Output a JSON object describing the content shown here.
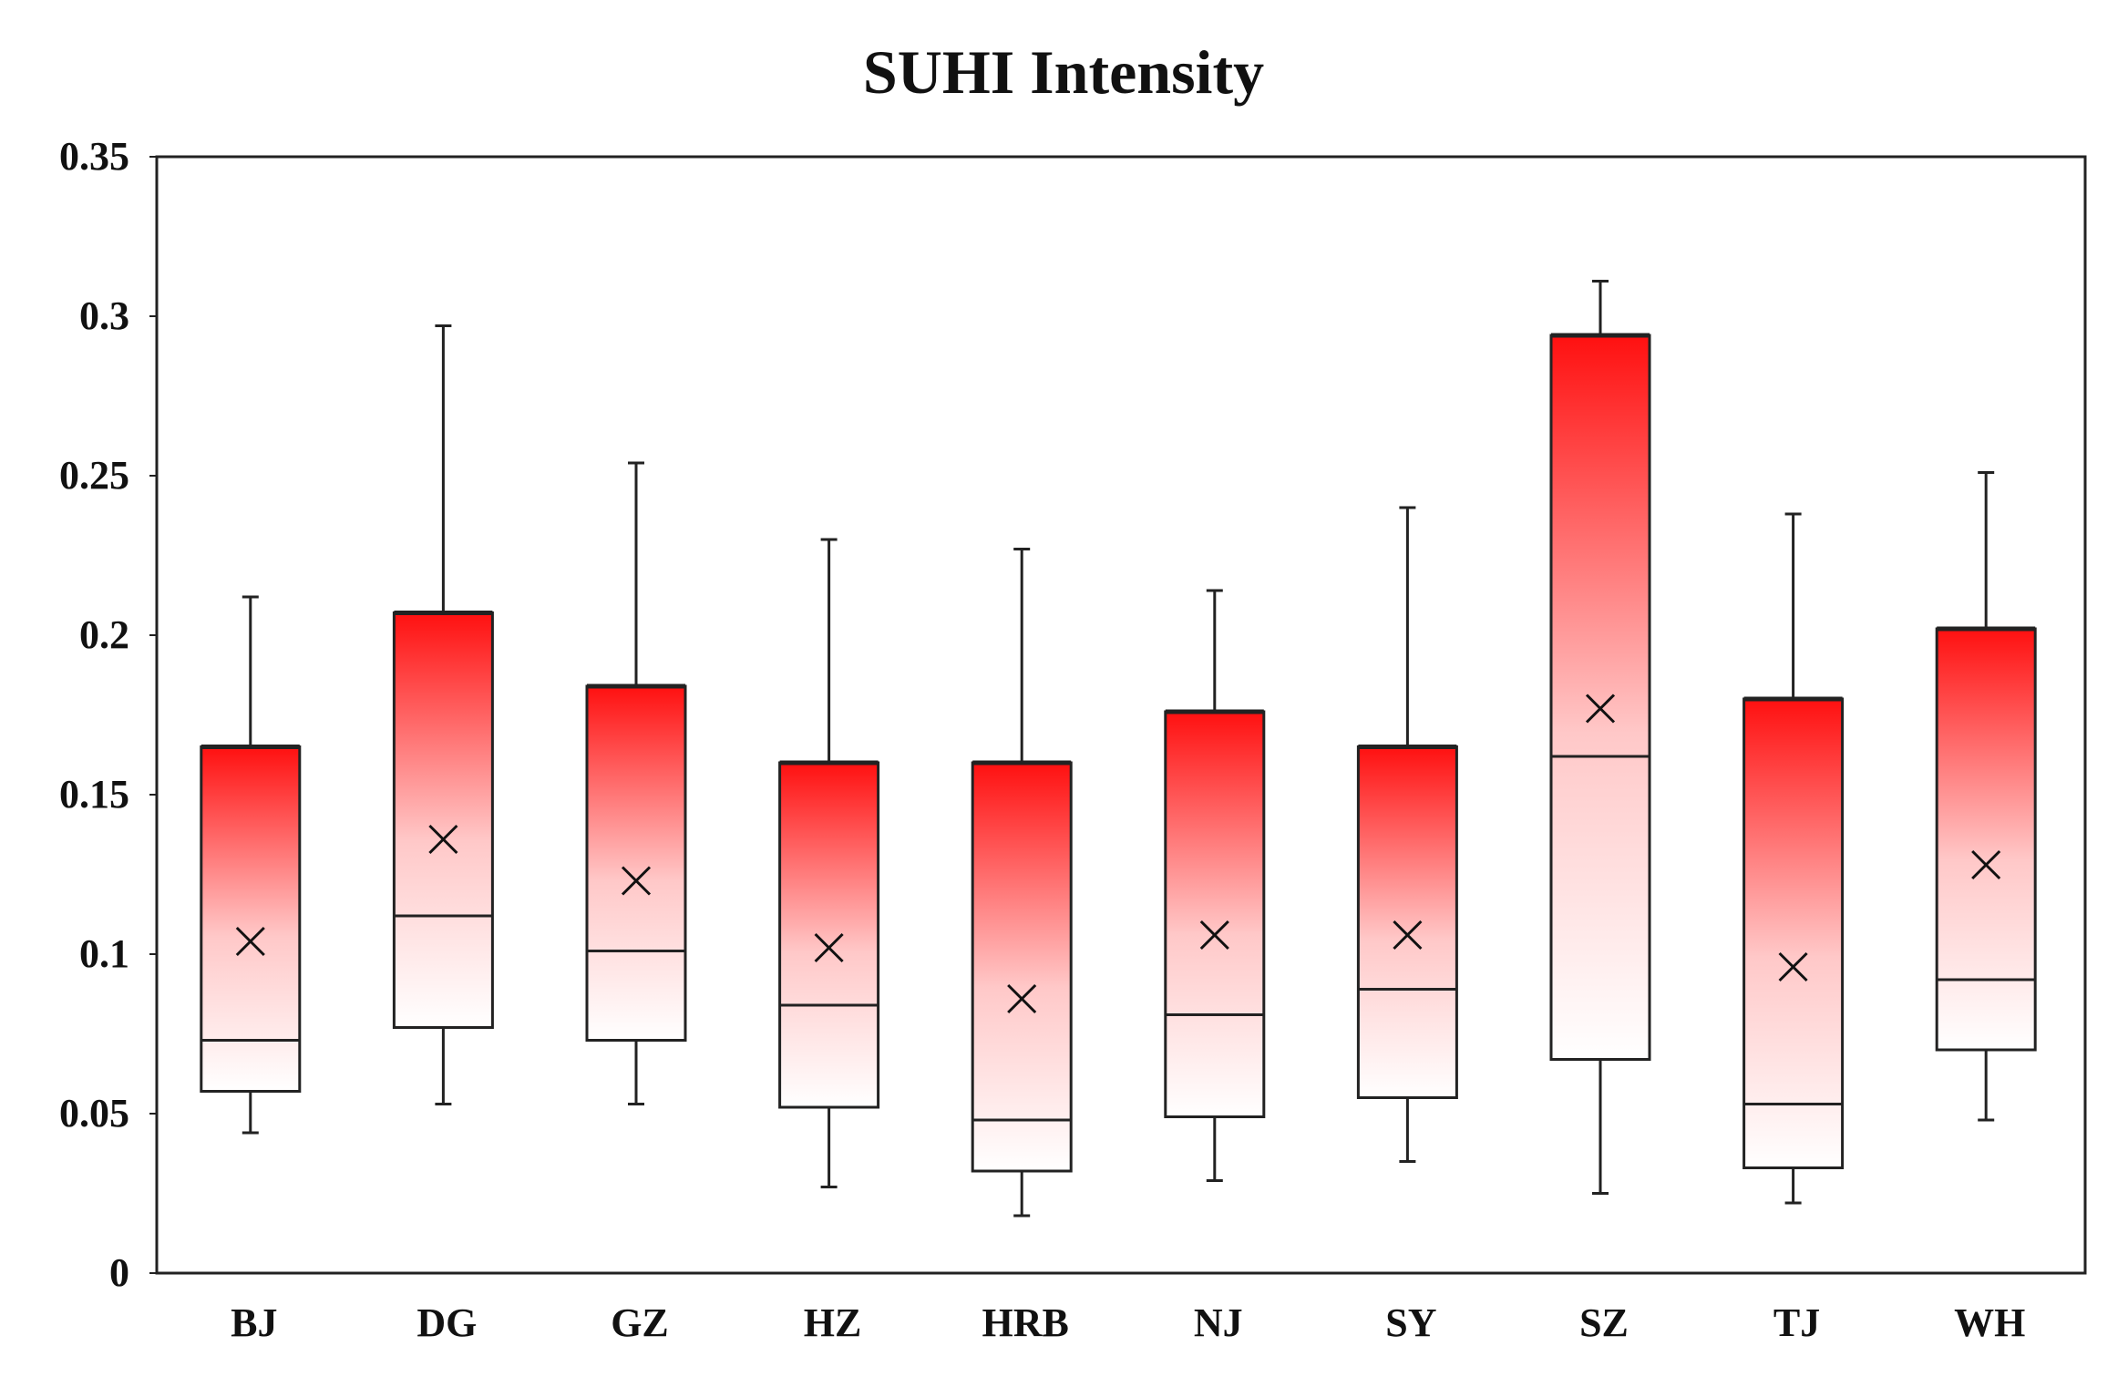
{
  "chart_data": {
    "type": "box",
    "title": "SUHI Intensity",
    "xlabel": "",
    "ylabel": "",
    "ylim": [
      0,
      0.35
    ],
    "yticks": [
      0,
      0.05,
      0.1,
      0.15,
      0.2,
      0.25,
      0.3,
      0.35
    ],
    "ytick_labels": [
      "0",
      "0.05",
      "0.1",
      "0.15",
      "0.2",
      "0.25",
      "0.3",
      "0.35"
    ],
    "grid": false,
    "box_colors": {
      "top": "#ff1010",
      "bottom": "#ffffff",
      "stroke": "#222222"
    },
    "categories": [
      "BJ",
      "DG",
      "GZ",
      "HZ",
      "HRB",
      "NJ",
      "SY",
      "SZ",
      "TJ",
      "WH"
    ],
    "boxes": [
      {
        "name": "BJ",
        "min": 0.044,
        "q1": 0.057,
        "median": 0.073,
        "q3": 0.165,
        "max": 0.212,
        "mean": 0.104
      },
      {
        "name": "DG",
        "min": 0.053,
        "q1": 0.077,
        "median": 0.112,
        "q3": 0.207,
        "max": 0.297,
        "mean": 0.136
      },
      {
        "name": "GZ",
        "min": 0.053,
        "q1": 0.073,
        "median": 0.101,
        "q3": 0.184,
        "max": 0.254,
        "mean": 0.123
      },
      {
        "name": "HZ",
        "min": 0.027,
        "q1": 0.052,
        "median": 0.084,
        "q3": 0.16,
        "max": 0.23,
        "mean": 0.102
      },
      {
        "name": "HRB",
        "min": 0.018,
        "q1": 0.032,
        "median": 0.048,
        "q3": 0.16,
        "max": 0.227,
        "mean": 0.086
      },
      {
        "name": "NJ",
        "min": 0.029,
        "q1": 0.049,
        "median": 0.081,
        "q3": 0.176,
        "max": 0.214,
        "mean": 0.106
      },
      {
        "name": "SY",
        "min": 0.035,
        "q1": 0.055,
        "median": 0.089,
        "q3": 0.165,
        "max": 0.24,
        "mean": 0.106
      },
      {
        "name": "SZ",
        "min": 0.025,
        "q1": 0.067,
        "median": 0.162,
        "q3": 0.294,
        "max": 0.311,
        "mean": 0.177
      },
      {
        "name": "TJ",
        "min": 0.022,
        "q1": 0.033,
        "median": 0.053,
        "q3": 0.18,
        "max": 0.238,
        "mean": 0.096
      },
      {
        "name": "WH",
        "min": 0.048,
        "q1": 0.07,
        "median": 0.092,
        "q3": 0.202,
        "max": 0.251,
        "mean": 0.128
      }
    ]
  }
}
